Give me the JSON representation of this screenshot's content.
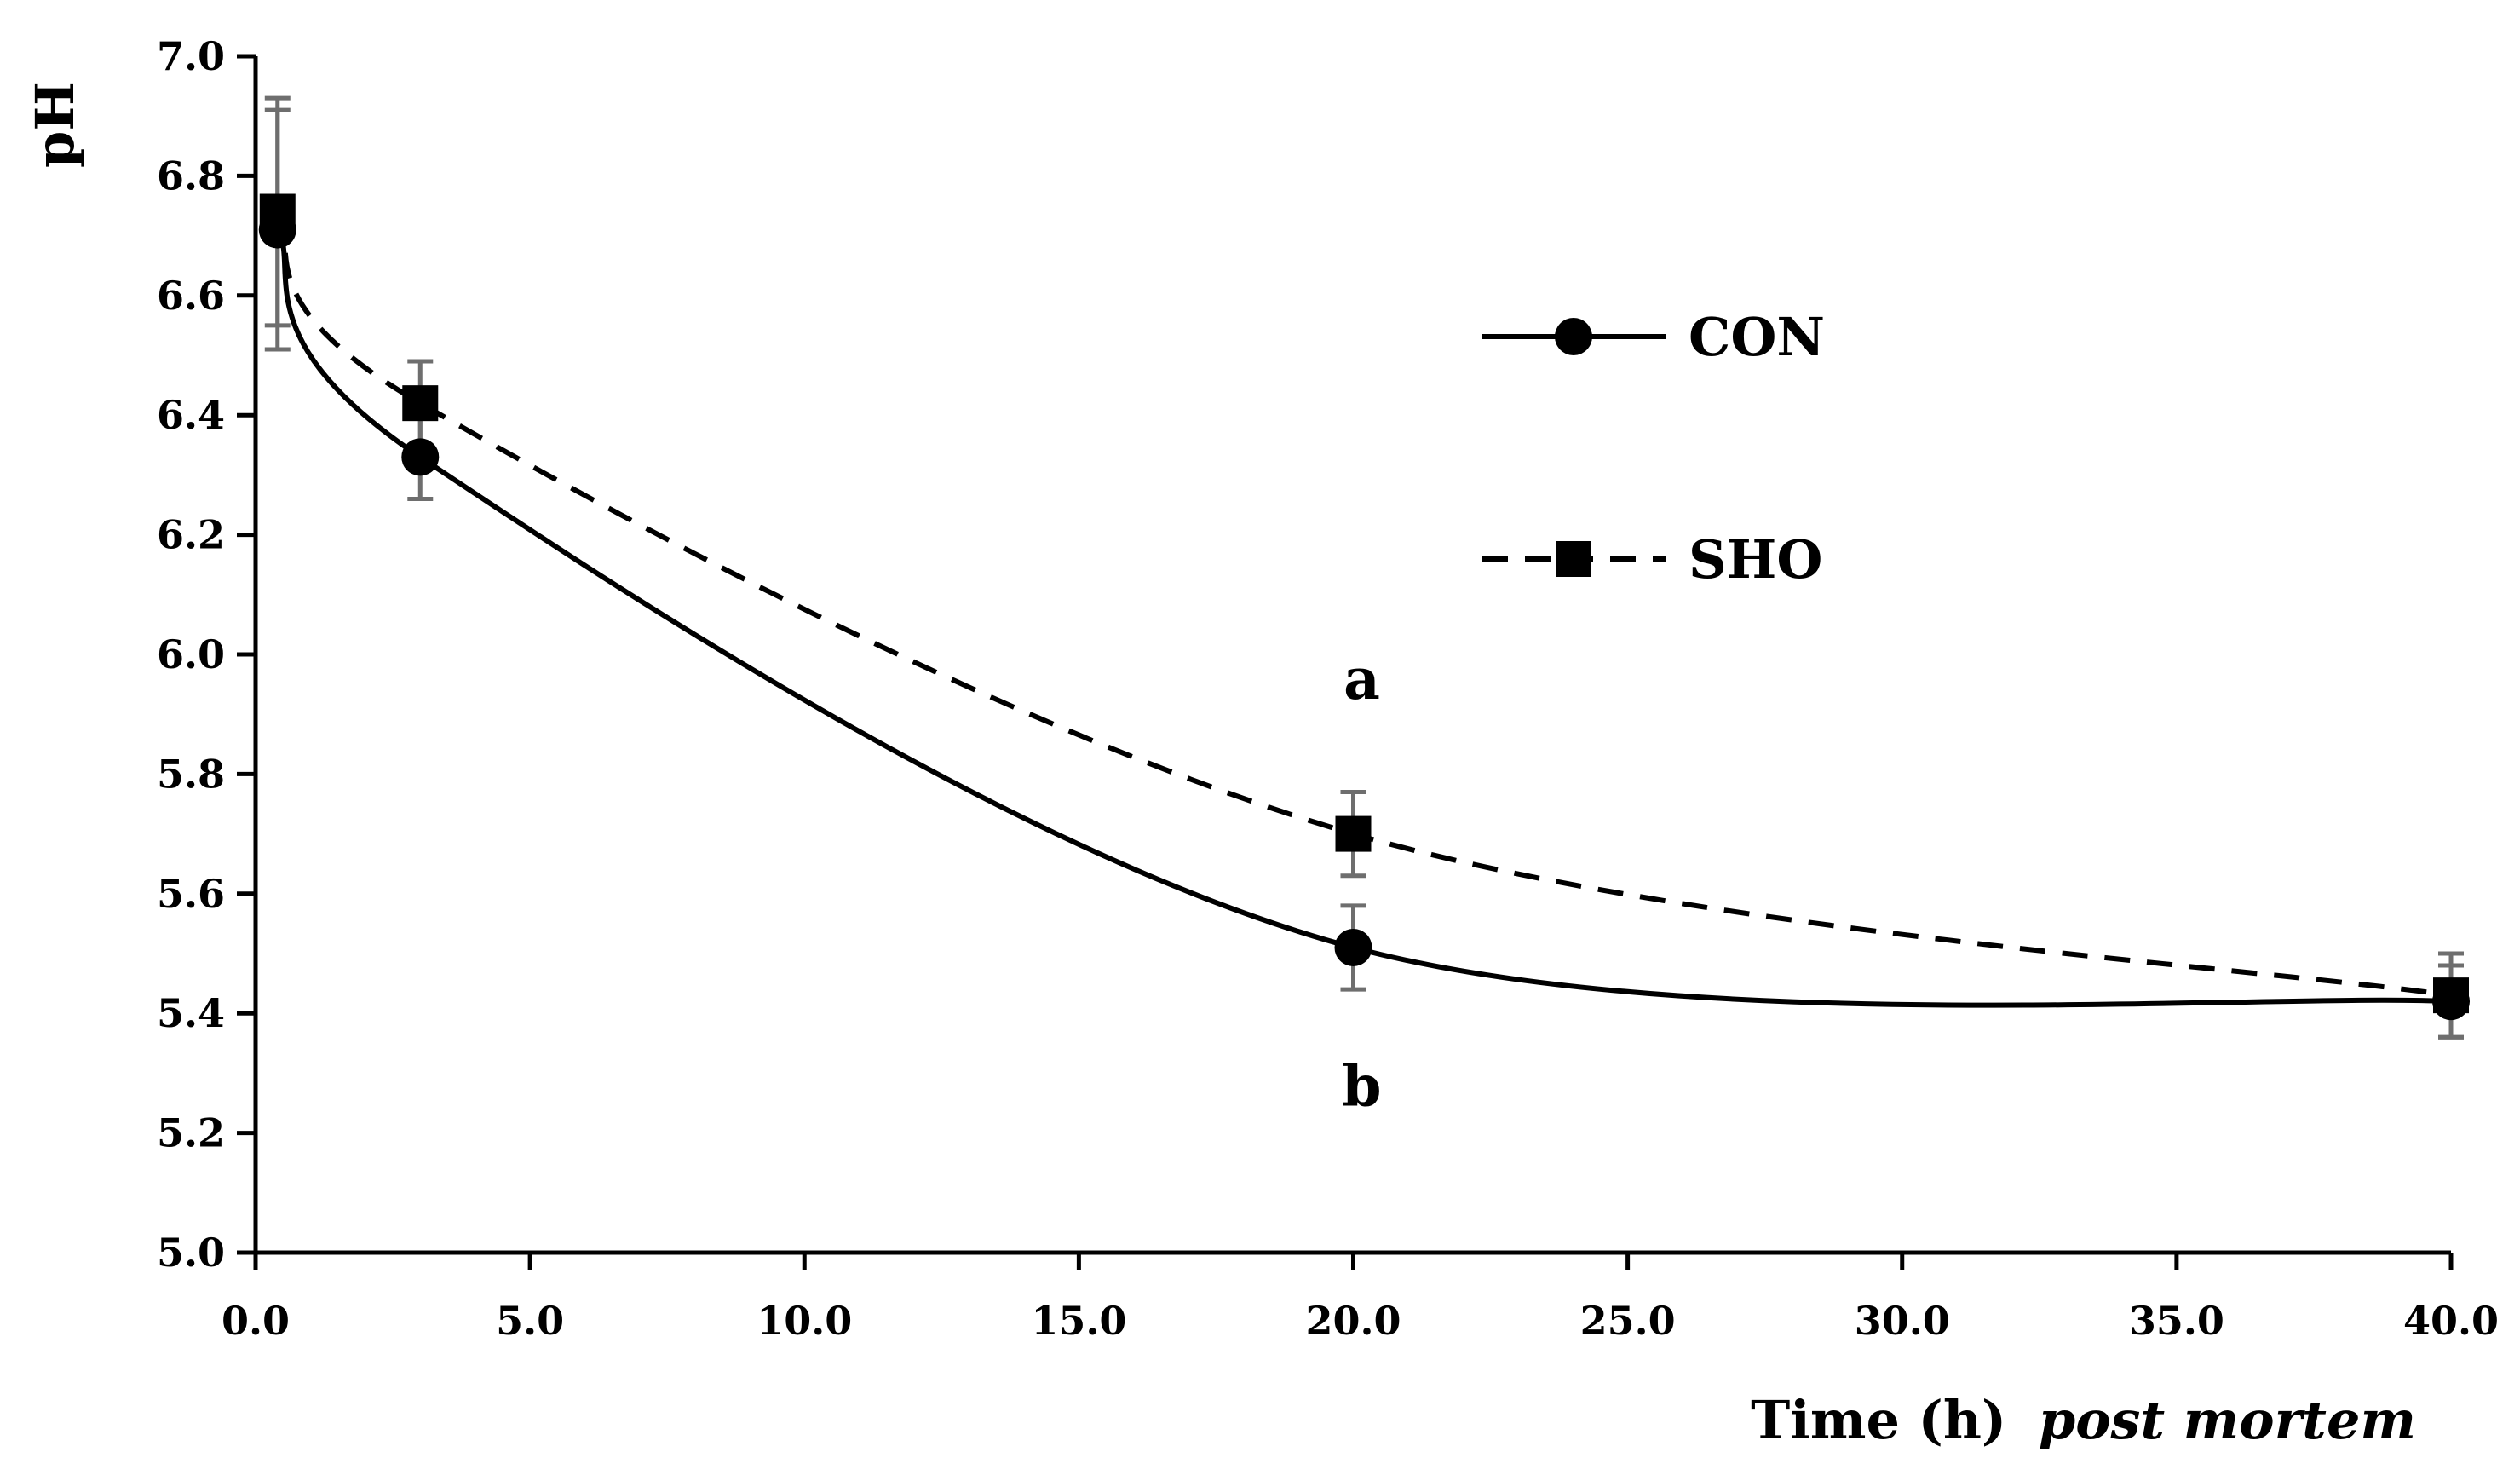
{
  "chart_data": {
    "type": "line",
    "title": "",
    "xlabel": "Time (h)",
    "xlabel_italic": "post mortem",
    "ylabel": "pH",
    "xlim": [
      0,
      40
    ],
    "ylim": [
      5.0,
      7.0
    ],
    "x_ticks": [
      "0.0",
      "5.0",
      "10.0",
      "15.0",
      "20.0",
      "25.0",
      "30.0",
      "35.0",
      "40.0"
    ],
    "y_ticks": [
      "5.0",
      "5.2",
      "5.4",
      "5.6",
      "5.8",
      "6.0",
      "6.2",
      "6.4",
      "6.6",
      "6.8",
      "7.0"
    ],
    "grid": false,
    "legend": "right",
    "series": [
      {
        "name": "CON",
        "marker": "circle",
        "line": "solid",
        "x": [
          0.4,
          3,
          20,
          40
        ],
        "y": [
          6.71,
          6.33,
          5.51,
          5.42
        ],
        "err": [
          0.2,
          0.07,
          0.07,
          0.06
        ]
      },
      {
        "name": "SHO",
        "marker": "square",
        "line": "dashed",
        "x": [
          0.4,
          3,
          20,
          40
        ],
        "y": [
          6.74,
          6.42,
          5.7,
          5.43
        ],
        "err": [
          0.19,
          0.07,
          0.07,
          0.07
        ]
      }
    ],
    "annotations": [
      {
        "text": "a",
        "x": 20,
        "y": 5.96
      },
      {
        "text": "b",
        "x": 20,
        "y": 5.28
      }
    ]
  }
}
